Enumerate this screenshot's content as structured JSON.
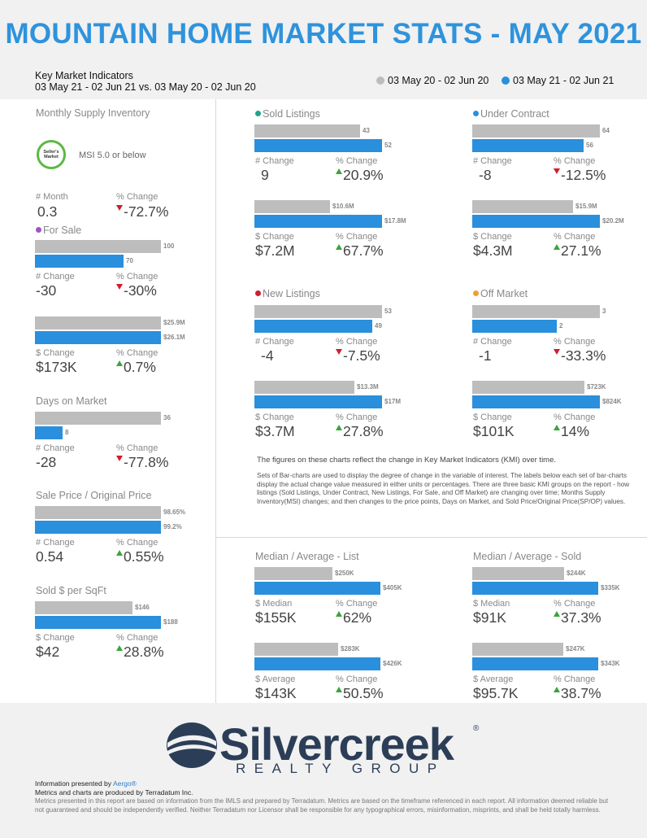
{
  "title": "MOUNTAIN HOME MARKET STATS - MAY 2021",
  "kmi": {
    "title": "Key Market Indicators",
    "subtitle": "03 May 21 - 02 Jun 21 vs. 03 May 20 - 02 Jun 20"
  },
  "legend": {
    "prior": "03 May 20 - 02 Jun 20",
    "current": "03 May 21 - 02 Jun 21",
    "prior_color": "#bdbdbd",
    "current_color": "#2a8fdc"
  },
  "labels": {
    "num_change": "# Change",
    "pct_change": "% Change",
    "dollar_change": "$ Change",
    "num_month": "# Month",
    "dollar_median": "$ Median",
    "dollar_average": "$ Average"
  },
  "msi": {
    "title": "Monthly Supply Inventory",
    "badge": "Seller's Market",
    "note": "MSI 5.0 or below",
    "num_month": "0.3",
    "pct": "-72.7%"
  },
  "for_sale": {
    "title": "For Sale",
    "dot_color": "#a052c8",
    "count": {
      "prior_label": "100",
      "current_label": "70",
      "prior": 100,
      "current": 70,
      "change": "-30",
      "pct": "-30%"
    },
    "volume": {
      "prior_label": "$25.9M",
      "current_label": "$26.1M",
      "prior": 25.9,
      "current": 26.1,
      "change": "$173K",
      "pct": "0.7%"
    }
  },
  "days_on_market": {
    "title": "Days on Market",
    "prior_label": "36",
    "current_label": "8",
    "prior": 36,
    "current": 8,
    "change": "-28",
    "pct": "-77.8%"
  },
  "sale_price": {
    "title": "Sale Price / Original Price",
    "prior_label": "98.65%",
    "current_label": "99.2%",
    "prior": 98.65,
    "current": 99.2,
    "change": "0.54",
    "pct": "0.55%"
  },
  "sqft": {
    "title": "Sold $ per SqFt",
    "prior_label": "$146",
    "current_label": "$188",
    "prior": 146,
    "current": 188,
    "change": "$42",
    "pct": "28.8%"
  },
  "sold": {
    "title": "Sold Listings",
    "dot_color": "#21a38b",
    "count": {
      "prior_label": "43",
      "current_label": "52",
      "prior": 43,
      "current": 52,
      "change": "9",
      "pct": "20.9%"
    },
    "volume": {
      "prior_label": "$10.6M",
      "current_label": "$17.8M",
      "prior": 10.6,
      "current": 17.8,
      "change": "$7.2M",
      "pct": "67.7%"
    }
  },
  "under_contract": {
    "title": "Under Contract",
    "dot_color": "#2a8fdc",
    "count": {
      "prior_label": "64",
      "current_label": "56",
      "prior": 64,
      "current": 56,
      "change": "-8",
      "pct": "-12.5%"
    },
    "volume": {
      "prior_label": "$15.9M",
      "current_label": "$20.2M",
      "prior": 15.9,
      "current": 20.2,
      "change": "$4.3M",
      "pct": "27.1%"
    }
  },
  "new_listings": {
    "title": "New Listings",
    "dot_color": "#cf1e2e",
    "count": {
      "prior_label": "53",
      "current_label": "49",
      "prior": 53,
      "current": 49,
      "change": "-4",
      "pct": "-7.5%"
    },
    "volume": {
      "prior_label": "$13.3M",
      "current_label": "$17M",
      "prior": 13.3,
      "current": 17,
      "change": "$3.7M",
      "pct": "27.8%"
    }
  },
  "off_market": {
    "title": "Off Market",
    "dot_color": "#f0a030",
    "count": {
      "prior_label": "3",
      "current_label": "2",
      "prior": 3,
      "current": 2,
      "change": "-1",
      "pct": "-33.3%"
    },
    "volume": {
      "prior_label": "$723K",
      "current_label": "$824K",
      "prior": 723,
      "current": 824,
      "change": "$101K",
      "pct": "14%"
    }
  },
  "note": {
    "main": "The figures on these charts reflect the change in Key Market Indicators (KMI) over time.",
    "body": "Sets of Bar-charts are used to display the degree of change in the variable of interest. The labels below each set of bar-charts display the actual change value measured in either units or percentages. There are three basic KMI groups on the report - how listings (Sold Listings, Under Contract, New Listings, For Sale, and Off Market) are changing over time; Months Supply Inventory(MSI) changes; and then changes to the price points, Days on Market, and Sold Price/Original Price(SP/OP) values."
  },
  "list": {
    "title": "Median / Average - List",
    "median": {
      "prior_label": "$250K",
      "current_label": "$405K",
      "prior": 250,
      "current": 405,
      "change": "$155K",
      "pct": "62%"
    },
    "average": {
      "prior_label": "$283K",
      "current_label": "$426K",
      "prior": 283,
      "current": 426,
      "change": "$143K",
      "pct": "50.5%"
    }
  },
  "sold_prices": {
    "title": "Median / Average - Sold",
    "median": {
      "prior_label": "$244K",
      "current_label": "$335K",
      "prior": 244,
      "current": 335,
      "change": "$91K",
      "pct": "37.3%"
    },
    "average": {
      "prior_label": "$247K",
      "current_label": "$343K",
      "prior": 247,
      "current": 343,
      "change": "$95.7K",
      "pct": "38.7%"
    }
  },
  "logo": {
    "name": "Silvercreek",
    "sub": "REALTY GROUP",
    "reg": "®"
  },
  "footer": {
    "presented": "Information presented by",
    "presented_by": "Aergo®",
    "produced": "Metrics and charts are produced by Terradatum Inc.",
    "disclaimer": "Metrics presented in this report are based on information from the IMLS and prepared by Terradatum. Metrics are based on the timeframe referenced in each report. All information deemed reliable but not guaranteed and should be independently verified. Neither Terradatum nor Licensor shall be responsible for any typographical errors, misinformation, misprints, and shall be held totally harmless."
  },
  "chart_data": {
    "type": "bar",
    "title": "MOUNTAIN HOME MARKET STATS - MAY 2021",
    "categories": [
      "Monthly Supply Inventory",
      "For Sale",
      "For Sale Volume",
      "Days on Market",
      "Sale Price / Original Price",
      "Sold $ per SqFt",
      "Sold Listings",
      "Sold Volume",
      "Under Contract",
      "Under Contract Volume",
      "New Listings",
      "New Listings Volume",
      "Off Market",
      "Off Market Volume",
      "Median - List",
      "Average - List",
      "Median - Sold",
      "Average - Sold"
    ],
    "series": [
      {
        "name": "03 May 20 - 02 Jun 20",
        "values": [
          null,
          100,
          25.9,
          36,
          98.65,
          146,
          43,
          10.6,
          64,
          15.9,
          53,
          13.3,
          3,
          723,
          250,
          283,
          244,
          247
        ]
      },
      {
        "name": "03 May 21 - 02 Jun 21",
        "values": [
          0.3,
          70,
          26.1,
          8,
          99.2,
          188,
          52,
          17.8,
          56,
          20.2,
          49,
          17,
          2,
          824,
          405,
          426,
          335,
          343
        ]
      }
    ]
  }
}
